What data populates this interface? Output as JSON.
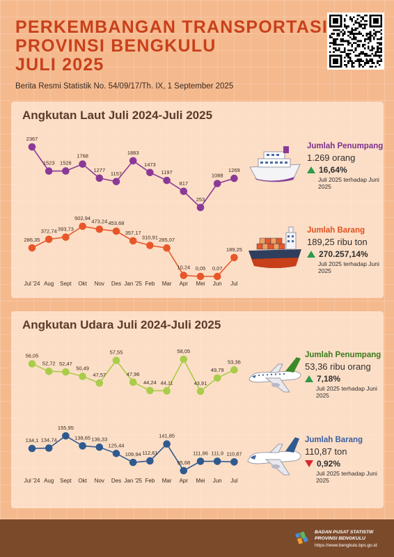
{
  "header": {
    "title_lines": [
      "PERKEMBANGAN TRANSPORTASI",
      "PROVINSI BENGKULU",
      "JULI 2025"
    ],
    "subtitle": "Berita Resmi Statistik No. 54/09/17/Th. IX, 1 September 2025"
  },
  "laut": {
    "title": "Angkutan Laut Juli 2024-Juli 2025",
    "penumpang": {
      "label": "Jumlah Penumpang",
      "value": "1.269 orang",
      "change": "16,64%",
      "direction": "up",
      "note": "Juli 2025 terhadap Juni 2025",
      "color": "#7b2f8c"
    },
    "barang": {
      "label": "Jumlah Barang",
      "value": "189,25 ribu ton",
      "change": "270.257,14%",
      "direction": "up",
      "note": "Juli 2025 terhadap Juni 2025",
      "color": "#e0501f"
    }
  },
  "udara": {
    "title": "Angkutan Udara Juli 2024-Juli 2025",
    "penumpang": {
      "label": "Jumlah Penumpang",
      "value": "53,36 ribu orang",
      "change": "7,18%",
      "direction": "up",
      "note": "Juli 2025 terhadap Juni 2025",
      "color": "#3b7a1e"
    },
    "barang": {
      "label": "Jumlah Barang",
      "value": "110,87 ton",
      "change": "0,92%",
      "direction": "down",
      "note": "Juli 2025 terhadap Juni 2025",
      "color": "#3b5fa0"
    }
  },
  "colors": {
    "up": "#2e9a4a",
    "down": "#d9262b",
    "laut_penumpang": "#8a3a96",
    "laut_barang": "#e8572a",
    "udara_penumpang": "#a9cc4a",
    "udara_barang": "#2f5a8f"
  },
  "chart_data": [
    {
      "type": "line",
      "title": "Angkutan Laut - Jumlah Penumpang",
      "categories": [
        "Jul '24",
        "Aug",
        "Sept",
        "Okt",
        "Nov",
        "Des",
        "Jan '25",
        "Feb",
        "Mar",
        "Apr",
        "Mei",
        "Jun",
        "Jul"
      ],
      "values": [
        2367,
        1523,
        1526,
        1768,
        1277,
        1157,
        1883,
        1473,
        1197,
        817,
        253,
        1088,
        1269
      ],
      "labels": [
        "2367",
        "1523",
        "1526",
        "1768",
        "1277",
        "1157",
        "1883",
        "1473",
        "1197",
        "817",
        "253",
        "1088",
        "1269"
      ],
      "unit": "orang"
    },
    {
      "type": "line",
      "title": "Angkutan Laut - Jumlah Barang",
      "categories": [
        "Jul '24",
        "Aug",
        "Sept",
        "Okt",
        "Nov",
        "Des",
        "Jan '25",
        "Feb",
        "Mar",
        "Apr",
        "Mei",
        "Jun",
        "Jul"
      ],
      "values": [
        286.35,
        372.74,
        393.73,
        502.94,
        473.24,
        453.68,
        357.17,
        310.91,
        285.07,
        10.24,
        0.05,
        0.07,
        189.25
      ],
      "labels": [
        "286,35",
        "372,74",
        "393,73",
        "502,94",
        "473,24",
        "453,68",
        "357,17",
        "310,91",
        "285,07",
        "10,24",
        "0,05",
        "0,07",
        "189,25"
      ],
      "unit": "ribu ton"
    },
    {
      "type": "line",
      "title": "Angkutan Udara - Jumlah Penumpang",
      "categories": [
        "Jul '24",
        "Aug",
        "Sept",
        "Okt",
        "Nov",
        "Des",
        "Jan '25",
        "Feb",
        "Mar",
        "Apr",
        "Mei",
        "Jun",
        "Jul"
      ],
      "values": [
        56.05,
        52.72,
        52.47,
        50.49,
        47.57,
        57.55,
        47.96,
        44.24,
        44.11,
        58.05,
        43.91,
        49.79,
        53.36
      ],
      "labels": [
        "56,05",
        "52,72",
        "52,47",
        "50,49",
        "47,57",
        "57,55",
        "47,96",
        "44,24",
        "44,11",
        "58,05",
        "43,91",
        "49,79",
        "53,36"
      ],
      "unit": "ribu orang"
    },
    {
      "type": "line",
      "title": "Angkutan Udara - Jumlah Barang",
      "categories": [
        "Jul '24",
        "Aug",
        "Sept",
        "Okt",
        "Nov",
        "Des",
        "Jan '25",
        "Feb",
        "Mar",
        "Apr",
        "Mei",
        "Jun",
        "Jul"
      ],
      "values": [
        134.1,
        134.74,
        155.95,
        138.65,
        136.33,
        125.44,
        109.94,
        112.61,
        141.85,
        95.68,
        111.96,
        111.9,
        110.87
      ],
      "labels": [
        "134,1",
        "134,74",
        "155,95",
        "138,65",
        "136,33",
        "125,44",
        "109,94",
        "112,61",
        "141,85",
        "95,68",
        "111,96",
        "111,9",
        "110,87"
      ],
      "unit": "ton"
    }
  ],
  "footer": {
    "org_line1": "BADAN PUSAT STATISTIK",
    "org_line2": "PROVINSI BENGKULU",
    "url": "https://www.bengkulu.bps.go.id"
  }
}
